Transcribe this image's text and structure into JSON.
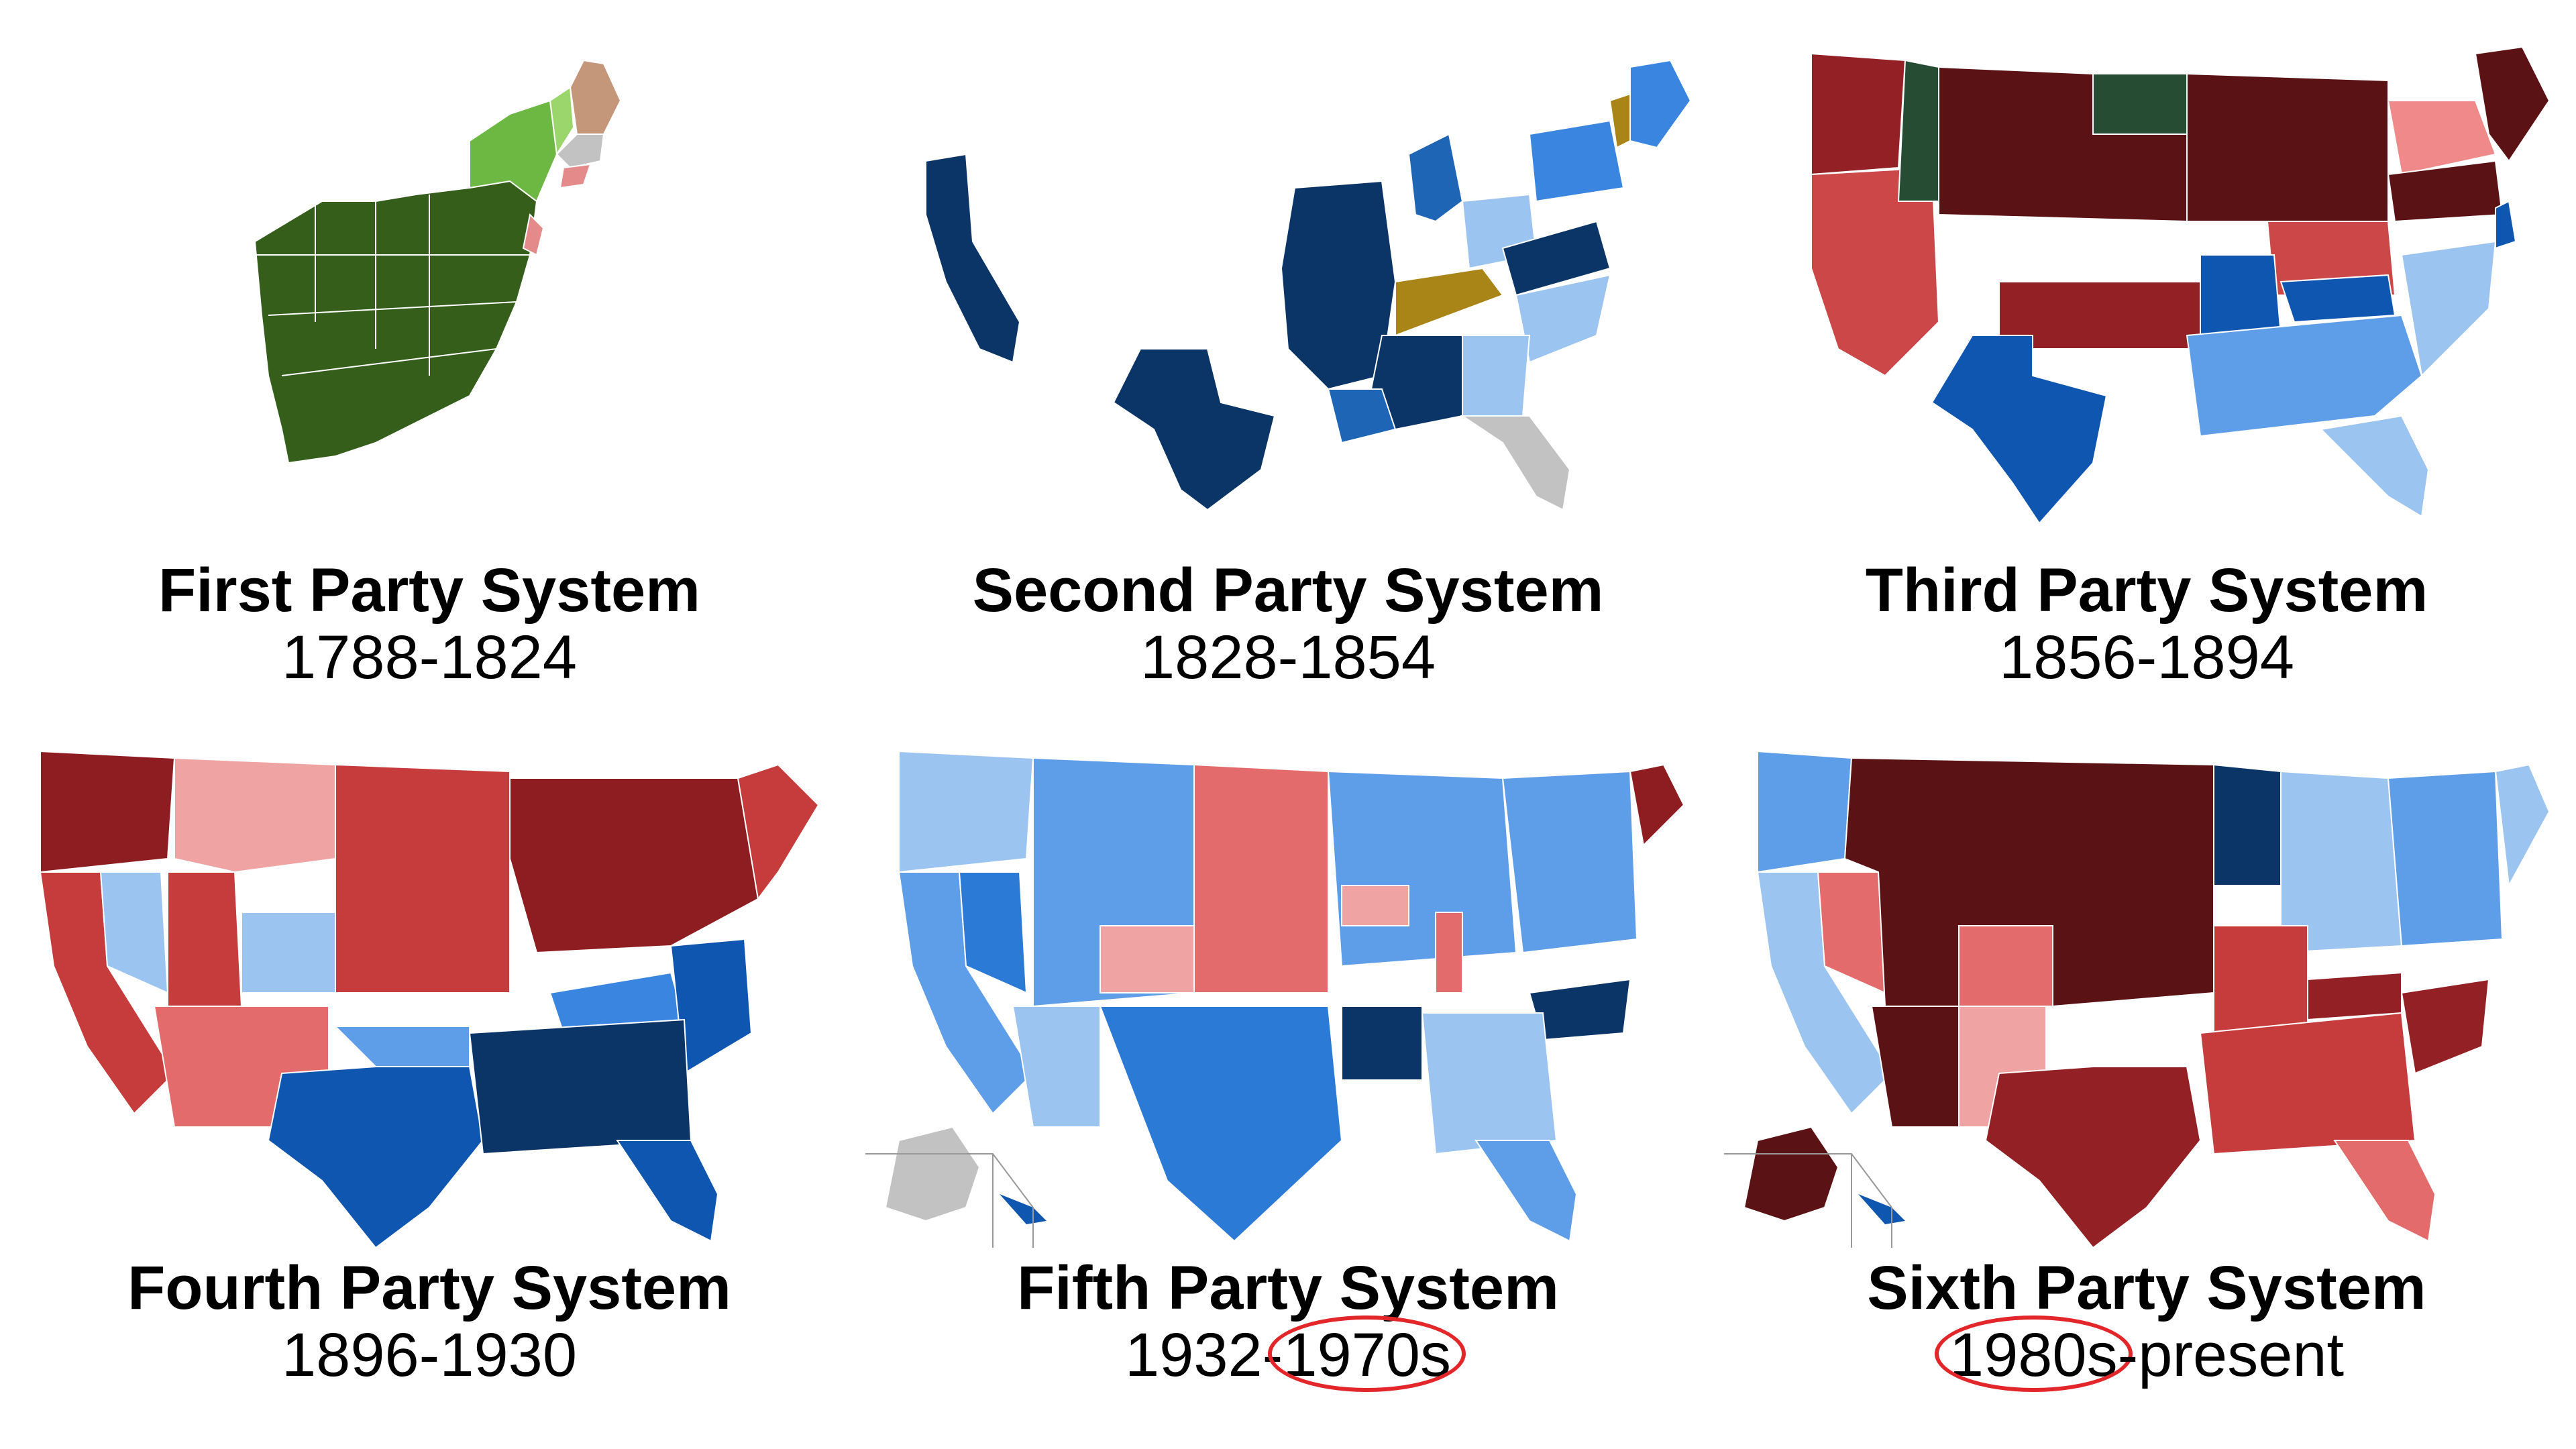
{
  "panels": [
    {
      "title": "First Party System",
      "years_a": "1788-1824",
      "years_sep": "",
      "years_b": "",
      "circle": "none",
      "colors": [
        "#355e1b",
        "#6db843",
        "#9ad66b",
        "#c4967a",
        "#c2c2c2",
        "#e58a8a"
      ]
    },
    {
      "title": "Second Party System",
      "years_a": "1828-1854",
      "years_sep": "",
      "years_b": "",
      "circle": "none",
      "colors": [
        "#0b3566",
        "#1f65b5",
        "#3a85e0",
        "#9cc4f0",
        "#a98416",
        "#c2c2c2"
      ]
    },
    {
      "title": "Third Party System",
      "years_a": "1856-1894",
      "years_sep": "",
      "years_b": "",
      "circle": "none",
      "colors": [
        "#5b1214",
        "#932024",
        "#cc4747",
        "#f08a8a",
        "#264d33",
        "#0f56b0",
        "#5e9de8",
        "#9cc4f0"
      ]
    },
    {
      "title": "Fourth Party System",
      "years_a": "1896-1930",
      "years_sep": "",
      "years_b": "",
      "circle": "none",
      "colors": [
        "#8e1d21",
        "#c63b3b",
        "#e46b6b",
        "#efa3a3",
        "#0b3566",
        "#0f56b0",
        "#3a85e0",
        "#9cc4f0"
      ]
    },
    {
      "title": "Fifth Party System",
      "years_a": "1932",
      "years_sep": "-",
      "years_b": "1970s",
      "circle": "b",
      "colors": [
        "#0b3566",
        "#2a7ad6",
        "#5e9de8",
        "#9cc4f0",
        "#e46b6b",
        "#efa3a3",
        "#8e1d21",
        "#c2c2c2"
      ]
    },
    {
      "title": "Sixth Party System",
      "years_a": "1980s",
      "years_sep": "-",
      "years_b": "present",
      "circle": "a",
      "colors": [
        "#5b1214",
        "#932024",
        "#c63b3b",
        "#e46b6b",
        "#efa3a3",
        "#0b3566",
        "#5e9de8",
        "#9cc4f0"
      ]
    }
  ]
}
